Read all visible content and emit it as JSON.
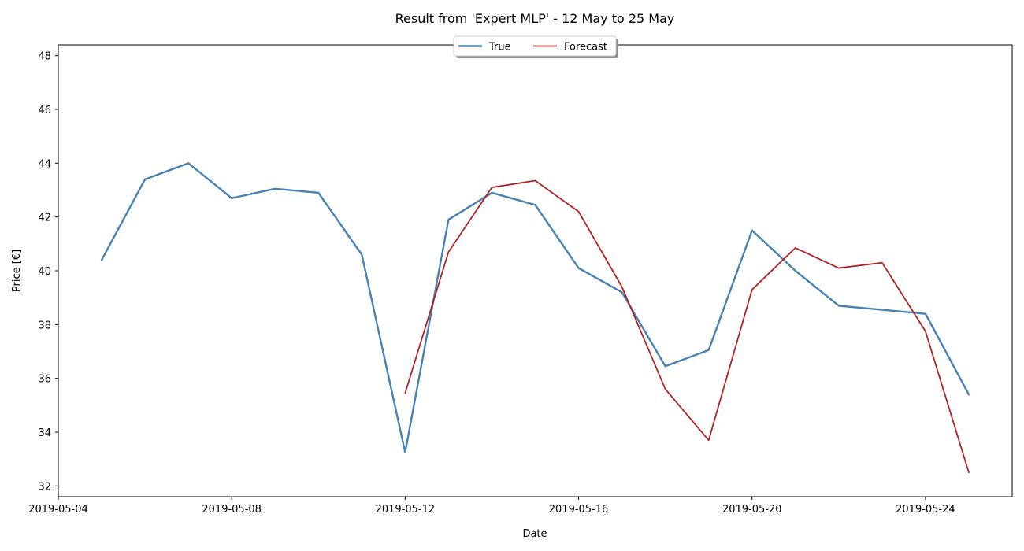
{
  "chart_data": {
    "type": "line",
    "title": "Result from 'Expert MLP' - 12 May to 25 May",
    "xlabel": "Date",
    "ylabel": "Price [€]",
    "xlim": [
      "2019-05-04",
      "2019-05-26"
    ],
    "ylim": [
      31.6,
      48.4
    ],
    "x_ticks": [
      "2019-05-04",
      "2019-05-08",
      "2019-05-12",
      "2019-05-16",
      "2019-05-20",
      "2019-05-24"
    ],
    "y_ticks": [
      32,
      34,
      36,
      38,
      40,
      42,
      44,
      46,
      48
    ],
    "grid": false,
    "legend_position": "top-center",
    "series": [
      {
        "name": "True",
        "color": "#4682b4",
        "points": [
          [
            "2019-05-05",
            40.4
          ],
          [
            "2019-05-06",
            43.4
          ],
          [
            "2019-05-07",
            44.0
          ],
          [
            "2019-05-08",
            42.7
          ],
          [
            "2019-05-09",
            43.05
          ],
          [
            "2019-05-10",
            42.9
          ],
          [
            "2019-05-11",
            40.6
          ],
          [
            "2019-05-12",
            33.25
          ],
          [
            "2019-05-13",
            41.9
          ],
          [
            "2019-05-14",
            42.9
          ],
          [
            "2019-05-15",
            42.45
          ],
          [
            "2019-05-16",
            40.1
          ],
          [
            "2019-05-17",
            39.2
          ],
          [
            "2019-05-18",
            36.45
          ],
          [
            "2019-05-19",
            37.05
          ],
          [
            "2019-05-20",
            41.5
          ],
          [
            "2019-05-21",
            40.0
          ],
          [
            "2019-05-22",
            38.7
          ],
          [
            "2019-05-23",
            38.55
          ],
          [
            "2019-05-24",
            38.4
          ],
          [
            "2019-05-25",
            35.4
          ]
        ]
      },
      {
        "name": "Forecast",
        "color": "#b22222",
        "points": [
          [
            "2019-05-12",
            35.45
          ],
          [
            "2019-05-13",
            40.7
          ],
          [
            "2019-05-14",
            43.1
          ],
          [
            "2019-05-15",
            43.35
          ],
          [
            "2019-05-16",
            42.2
          ],
          [
            "2019-05-17",
            39.4
          ],
          [
            "2019-05-18",
            35.6
          ],
          [
            "2019-05-19",
            33.7
          ],
          [
            "2019-05-20",
            39.3
          ],
          [
            "2019-05-21",
            40.85
          ],
          [
            "2019-05-22",
            40.1
          ],
          [
            "2019-05-23",
            40.3
          ],
          [
            "2019-05-24",
            37.75
          ],
          [
            "2019-05-25",
            32.5
          ]
        ]
      }
    ]
  }
}
